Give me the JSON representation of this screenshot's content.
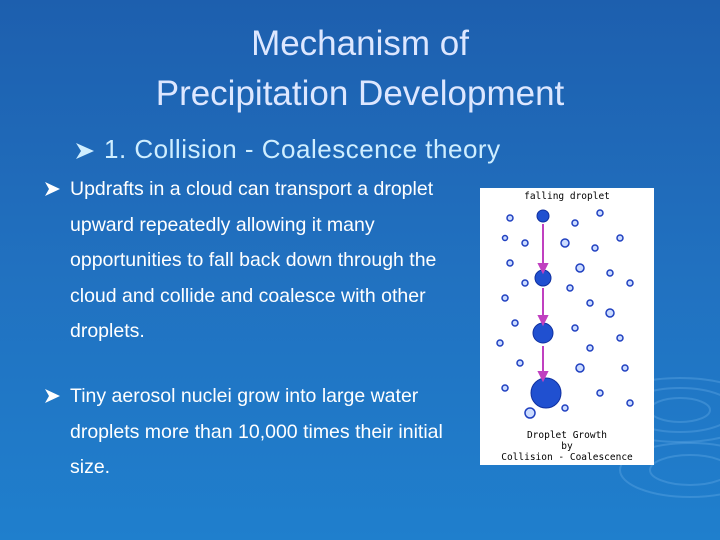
{
  "slide": {
    "title": [
      "Mechanism of",
      "Precipitation Development"
    ],
    "heading": "1. Collision - Coalescence theory",
    "bullets": [
      "Updrafts in a cloud can transport a droplet upward repeatedly allowing it many opportunities to fall back down through the cloud and collide and coalesce with other droplets.",
      "Tiny aerosol nuclei grow into large water droplets more than 10,000 times their initial size."
    ],
    "figure": {
      "top_label": "falling droplet",
      "caption": [
        "Droplet Growth",
        "by",
        "Collision - Coalescence"
      ]
    }
  }
}
